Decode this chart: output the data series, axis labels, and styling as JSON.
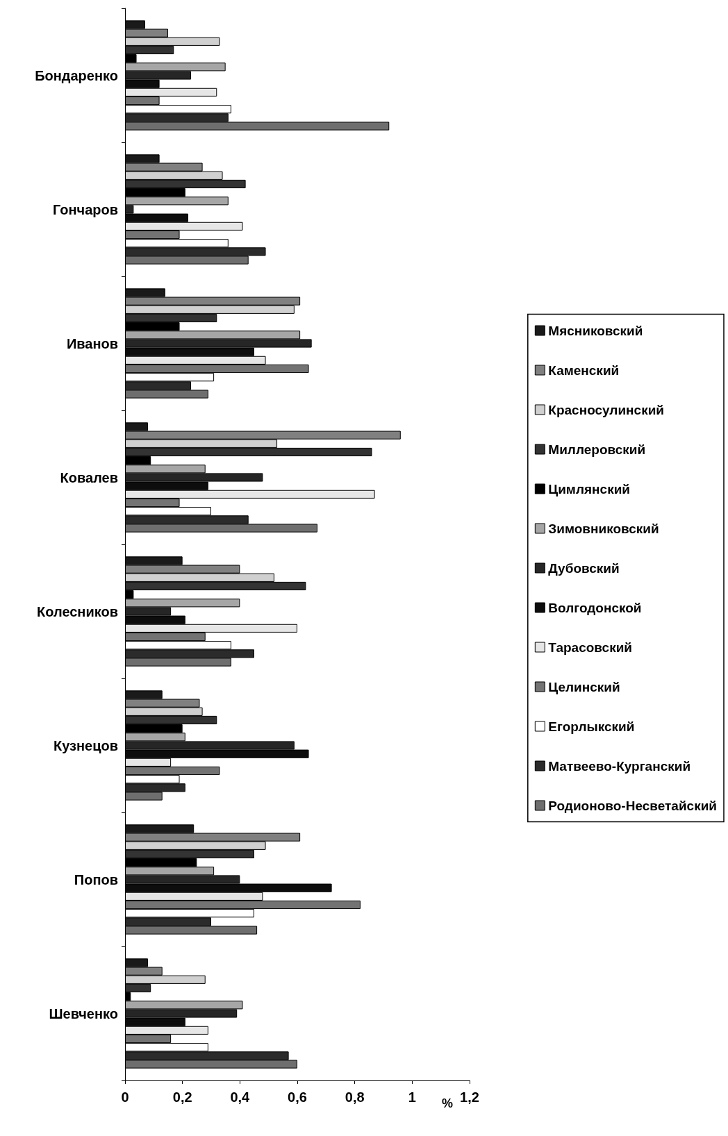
{
  "chart_data": {
    "type": "bar",
    "orientation": "horizontal",
    "xlabel": "%",
    "categories": [
      "Бондаренко",
      "Гончаров",
      "Иванов",
      "Ковалев",
      "Колесников",
      "Кузнецов",
      "Попов",
      "Шевченко"
    ],
    "series": [
      {
        "name": "Мясниковский",
        "color": "#1a1a1a",
        "values": [
          0.07,
          0.12,
          0.14,
          0.08,
          0.2,
          0.13,
          0.24,
          0.08
        ]
      },
      {
        "name": "Каменский",
        "color": "#808080",
        "values": [
          0.15,
          0.27,
          0.61,
          0.96,
          0.4,
          0.26,
          0.61,
          0.13
        ]
      },
      {
        "name": "Красносулинский",
        "color": "#d0d0d0",
        "values": [
          0.33,
          0.34,
          0.59,
          0.53,
          0.52,
          0.27,
          0.49,
          0.28
        ]
      },
      {
        "name": "Миллеровский",
        "color": "#333333",
        "values": [
          0.17,
          0.42,
          0.32,
          0.86,
          0.63,
          0.32,
          0.45,
          0.09
        ]
      },
      {
        "name": "Цимлянский",
        "color": "#000000",
        "values": [
          0.04,
          0.21,
          0.19,
          0.09,
          0.03,
          0.2,
          0.25,
          0.02
        ]
      },
      {
        "name": "Зимовниковский",
        "color": "#a6a6a6",
        "values": [
          0.35,
          0.36,
          0.61,
          0.28,
          0.4,
          0.21,
          0.31,
          0.41
        ]
      },
      {
        "name": "Дубовский",
        "color": "#262626",
        "values": [
          0.23,
          0.03,
          0.65,
          0.48,
          0.16,
          0.59,
          0.4,
          0.39
        ]
      },
      {
        "name": "Волгодонской",
        "color": "#0d0d0d",
        "values": [
          0.12,
          0.22,
          0.45,
          0.29,
          0.21,
          0.64,
          0.72,
          0.21
        ]
      },
      {
        "name": "Тарасовский",
        "color": "#e6e6e6",
        "values": [
          0.32,
          0.41,
          0.49,
          0.87,
          0.6,
          0.16,
          0.48,
          0.29
        ]
      },
      {
        "name": "Целинский",
        "color": "#737373",
        "values": [
          0.12,
          0.19,
          0.64,
          0.19,
          0.28,
          0.33,
          0.82,
          0.16
        ]
      },
      {
        "name": "Егорлыкский",
        "color": "#ffffff",
        "values": [
          0.37,
          0.36,
          0.31,
          0.3,
          0.37,
          0.19,
          0.45,
          0.29
        ]
      },
      {
        "name": "Матвеево-Курганский",
        "color": "#2b2b2b",
        "values": [
          0.36,
          0.49,
          0.23,
          0.43,
          0.45,
          0.21,
          0.3,
          0.57
        ]
      },
      {
        "name": "Родионово-Несветайский",
        "color": "#6e6e6e",
        "values": [
          0.92,
          0.43,
          0.29,
          0.67,
          0.37,
          0.13,
          0.46,
          0.6
        ]
      }
    ],
    "xlim": [
      0,
      1.2
    ],
    "xticks": [
      0,
      {
        "value": 0.2,
        "label": "0,2"
      },
      {
        "value": 0.4,
        "label": "0,4"
      },
      {
        "value": 0.6,
        "label": "0,6"
      },
      {
        "value": 0.8,
        "label": "0,8"
      },
      1,
      {
        "value": 1.2,
        "label": "1,2"
      }
    ],
    "grid": false,
    "legend": "right"
  }
}
